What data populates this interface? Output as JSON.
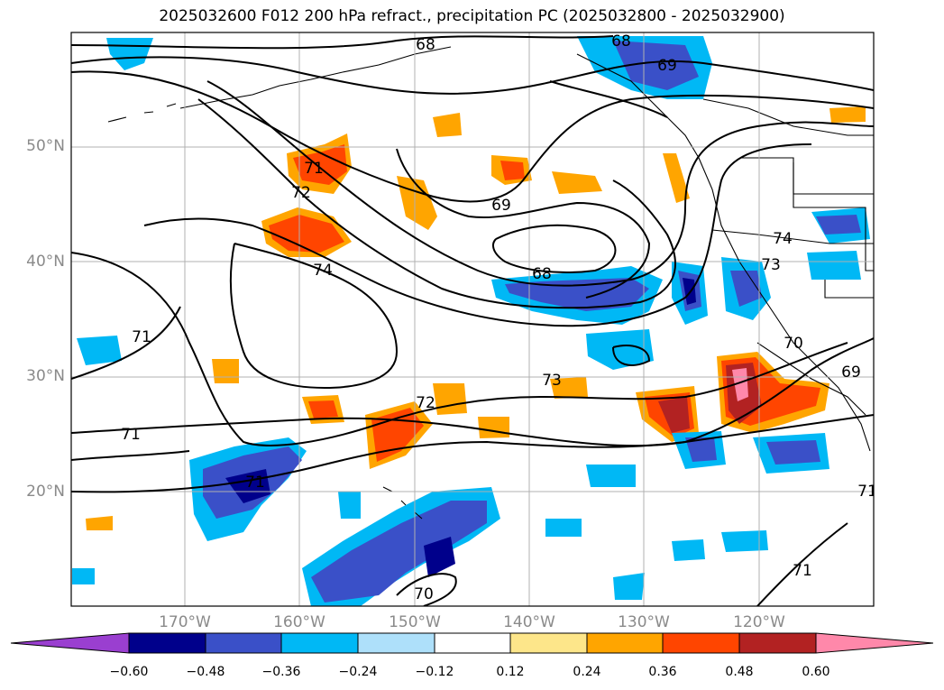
{
  "title": "2025032600 F012 200 hPa refract., precipitation PC (2025032800 - 2025032900)",
  "map": {
    "lat_labels": [
      "50°N",
      "40°N",
      "30°N",
      "20°N"
    ],
    "lon_labels": [
      "170°W",
      "160°W",
      "150°W",
      "140°W",
      "130°W",
      "120°W"
    ],
    "contour_labels": [
      "68",
      "68",
      "69",
      "71",
      "72",
      "69",
      "74",
      "68",
      "73",
      "71",
      "71",
      "73",
      "72",
      "70",
      "69",
      "74",
      "71",
      "71",
      "71",
      "70"
    ]
  },
  "colorbar": {
    "ticks": [
      "−0.60",
      "−0.48",
      "−0.36",
      "−0.24",
      "−0.12",
      "0.12",
      "0.24",
      "0.36",
      "0.48",
      "0.60"
    ],
    "colors": [
      "#9a3fd0",
      "#00008b",
      "#3a50c8",
      "#00b8f5",
      "#aee0fa",
      "#ffffff",
      "#fde68a",
      "#ffa500",
      "#ff4500",
      "#b22222",
      "#ff88aa"
    ]
  }
}
